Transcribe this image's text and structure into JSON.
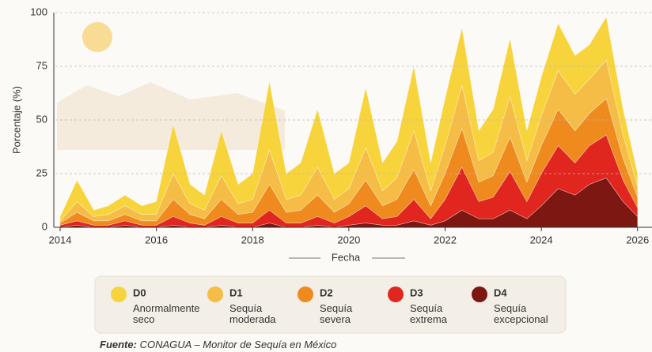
{
  "chart_data": {
    "type": "stacked-area",
    "ylabel": "Porcentaje (%)",
    "xlabel": "Fecha",
    "source_label": "Fuente:",
    "source": "CONAGUA – Monitor de Sequía en México",
    "x": [
      2014,
      2014.35,
      2014.7,
      2015,
      2015.35,
      2015.7,
      2016,
      2016.35,
      2016.7,
      2017,
      2017.35,
      2017.7,
      2018,
      2018.35,
      2018.7,
      2019,
      2019.35,
      2019.7,
      2020,
      2020.35,
      2020.7,
      2021,
      2021.35,
      2021.7,
      2022,
      2022.35,
      2022.7,
      2023,
      2023.35,
      2023.7,
      2024,
      2024.35,
      2024.7,
      2025,
      2025.35,
      2025.7,
      2026
    ],
    "xlim": [
      2014,
      2026.3
    ],
    "xticks": [
      2014,
      2016,
      2018,
      2020,
      2022,
      2024,
      2026
    ],
    "ylim": [
      0,
      100
    ],
    "yticks": [
      0,
      25,
      50,
      75,
      100
    ],
    "grid": true,
    "series": [
      {
        "name": "D0",
        "description": "Anormalmente seco",
        "color": "#f7d43c",
        "values": [
          2,
          10,
          3,
          4,
          5,
          4,
          6,
          23,
          9,
          7,
          21,
          9,
          12,
          32,
          12,
          15,
          27,
          12,
          12,
          28,
          13,
          17,
          30,
          13,
          22,
          27,
          14,
          20,
          27,
          14,
          18,
          22,
          18,
          16,
          20,
          12,
          6
        ]
      },
      {
        "name": "D1",
        "description": "Sequía moderada",
        "color": "#f5bd45",
        "values": [
          1,
          5,
          2,
          3,
          4,
          3,
          3,
          12,
          5,
          4,
          11,
          5,
          6,
          16,
          6,
          7,
          13,
          6,
          7,
          15,
          7,
          10,
          18,
          7,
          13,
          20,
          10,
          11,
          19,
          10,
          14,
          18,
          17,
          16,
          18,
          11,
          5
        ]
      },
      {
        "name": "D2",
        "description": "Sequía severa",
        "color": "#ee8a1e",
        "values": [
          1,
          4,
          2,
          2,
          3,
          2,
          2,
          8,
          4,
          3,
          8,
          4,
          5,
          12,
          5,
          6,
          10,
          5,
          6,
          12,
          6,
          8,
          14,
          6,
          12,
          18,
          9,
          10,
          16,
          9,
          13,
          17,
          15,
          15,
          17,
          10,
          5
        ]
      },
      {
        "name": "D3",
        "description": "Sequía extrema",
        "color": "#e0261f",
        "values": [
          1,
          2,
          1,
          1,
          2,
          1,
          1,
          4,
          2,
          1,
          4,
          2,
          2,
          6,
          2,
          2,
          4,
          2,
          4,
          8,
          3,
          4,
          10,
          3,
          10,
          20,
          8,
          10,
          18,
          8,
          15,
          20,
          15,
          18,
          20,
          10,
          4
        ]
      },
      {
        "name": "D4",
        "description": "Sequía excepcional",
        "color": "#7c1712",
        "values": [
          0,
          1,
          0,
          0,
          1,
          0,
          0,
          1,
          0,
          0,
          1,
          0,
          0,
          2,
          0,
          0,
          1,
          0,
          1,
          2,
          1,
          1,
          3,
          1,
          3,
          8,
          4,
          4,
          8,
          4,
          10,
          18,
          15,
          20,
          23,
          12,
          5
        ]
      }
    ]
  }
}
